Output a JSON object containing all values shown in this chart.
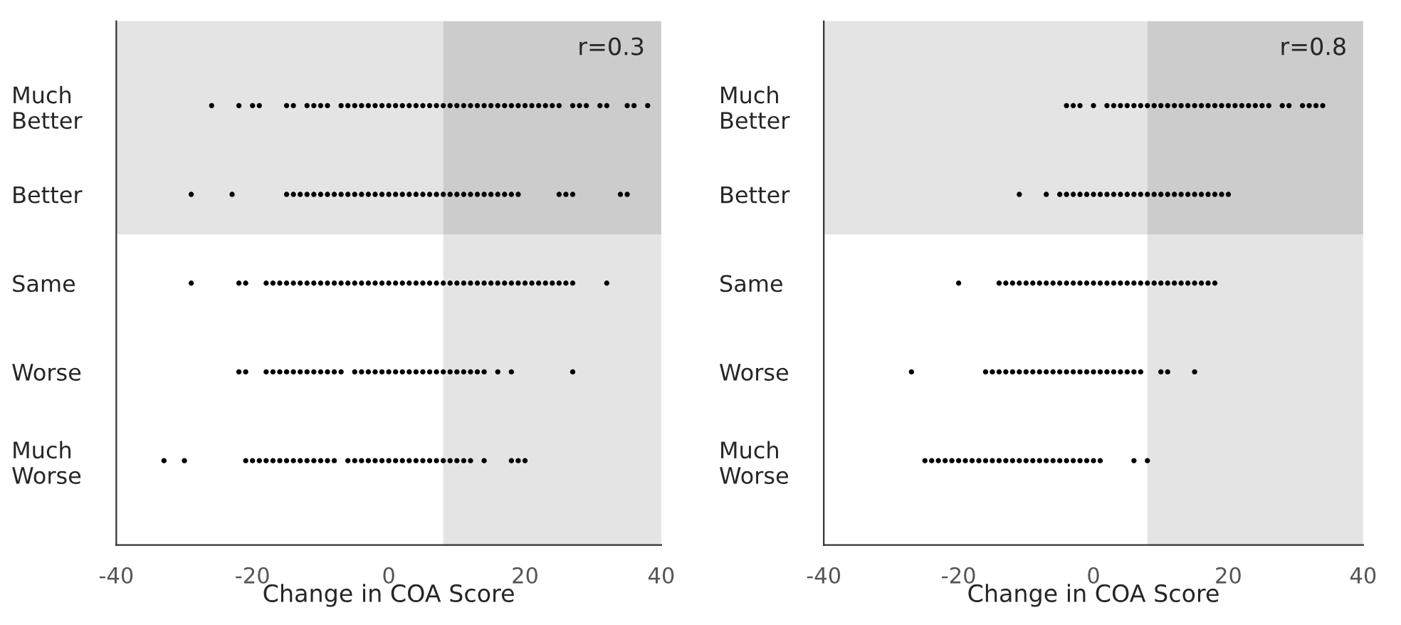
{
  "chart_data": [
    {
      "type": "scatter",
      "orientation": "horizontal",
      "xlabel": "Change in COA Score",
      "categories": [
        "Much\nBetter",
        "Better",
        "Same",
        "Worse",
        "Much\nWorse"
      ],
      "xlim": [
        -40,
        40
      ],
      "xticks": [
        -40,
        -20,
        0,
        20,
        40
      ],
      "grid": false,
      "marker": "circle",
      "annotations": [
        "r=0.3"
      ],
      "bands": [
        {
          "axis": "x",
          "from": 8,
          "to": 40,
          "color": "#e4e4e4"
        }
      ],
      "series": [
        {
          "color": "#000000",
          "values": [
            -26,
            -22,
            -20,
            -19,
            -15,
            -14,
            -12,
            -11,
            -10,
            -9,
            -7,
            -6,
            -5,
            -4,
            -3,
            -2,
            -1,
            0,
            1,
            2,
            3,
            4,
            5,
            6,
            7,
            8,
            9,
            10,
            11,
            12,
            13,
            14,
            15,
            16,
            17,
            18,
            19,
            20,
            21,
            22,
            23,
            24,
            25,
            27,
            28,
            29,
            31,
            32,
            35,
            36,
            38
          ],
          "x": [
            "Much\nBetter",
            "Much\nBetter",
            "Much\nBetter",
            "Much\nBetter",
            "Much\nBetter",
            "Much\nBetter",
            "Much\nBetter",
            "Much\nBetter",
            "Much\nBetter",
            "Much\nBetter",
            "Much\nBetter",
            "Much\nBetter",
            "Much\nBetter",
            "Much\nBetter",
            "Much\nBetter",
            "Much\nBetter",
            "Much\nBetter",
            "Much\nBetter",
            "Much\nBetter",
            "Much\nBetter",
            "Much\nBetter",
            "Much\nBetter",
            "Much\nBetter",
            "Much\nBetter",
            "Much\nBetter",
            "Much\nBetter",
            "Much\nBetter",
            "Much\nBetter",
            "Much\nBetter",
            "Much\nBetter",
            "Much\nBetter",
            "Much\nBetter",
            "Much\nBetter",
            "Much\nBetter",
            "Much\nBetter",
            "Much\nBetter",
            "Much\nBetter",
            "Much\nBetter",
            "Much\nBetter",
            "Much\nBetter",
            "Much\nBetter",
            "Much\nBetter",
            "Much\nBetter",
            "Much\nBetter",
            "Much\nBetter",
            "Much\nBetter",
            "Much\nBetter",
            "Much\nBetter",
            "Much\nBetter",
            "Much\nBetter",
            "Much\nBetter"
          ]
        },
        {
          "color": "#000000",
          "values": [
            -29,
            -23,
            -15,
            -14,
            -13,
            -12,
            -11,
            -10,
            -9,
            -8,
            -7,
            -6,
            -5,
            -4,
            -3,
            -2,
            -1,
            0,
            1,
            2,
            3,
            4,
            5,
            6,
            7,
            8,
            9,
            10,
            11,
            12,
            13,
            14,
            15,
            16,
            17,
            18,
            19,
            25,
            26,
            27,
            34,
            35
          ],
          "x": [
            "Better",
            "Better",
            "Better",
            "Better",
            "Better",
            "Better",
            "Better",
            "Better",
            "Better",
            "Better",
            "Better",
            "Better",
            "Better",
            "Better",
            "Better",
            "Better",
            "Better",
            "Better",
            "Better",
            "Better",
            "Better",
            "Better",
            "Better",
            "Better",
            "Better",
            "Better",
            "Better",
            "Better",
            "Better",
            "Better",
            "Better",
            "Better",
            "Better",
            "Better",
            "Better",
            "Better",
            "Better",
            "Better",
            "Better",
            "Better",
            "Better",
            "Better"
          ]
        },
        {
          "color": "#000000",
          "values": [
            -29,
            -22,
            -21,
            -18,
            -17,
            -16,
            -15,
            -14,
            -13,
            -12,
            -11,
            -10,
            -9,
            -8,
            -7,
            -6,
            -5,
            -4,
            -3,
            -2,
            -1,
            0,
            1,
            2,
            3,
            4,
            5,
            6,
            7,
            8,
            9,
            10,
            11,
            12,
            13,
            14,
            15,
            16,
            17,
            18,
            19,
            20,
            21,
            22,
            23,
            24,
            25,
            26,
            27,
            32
          ],
          "x": [
            "Same",
            "Same",
            "Same",
            "Same",
            "Same",
            "Same",
            "Same",
            "Same",
            "Same",
            "Same",
            "Same",
            "Same",
            "Same",
            "Same",
            "Same",
            "Same",
            "Same",
            "Same",
            "Same",
            "Same",
            "Same",
            "Same",
            "Same",
            "Same",
            "Same",
            "Same",
            "Same",
            "Same",
            "Same",
            "Same",
            "Same",
            "Same",
            "Same",
            "Same",
            "Same",
            "Same",
            "Same",
            "Same",
            "Same",
            "Same",
            "Same",
            "Same",
            "Same",
            "Same",
            "Same",
            "Same",
            "Same",
            "Same",
            "Same",
            "Same"
          ]
        },
        {
          "color": "#000000",
          "values": [
            -22,
            -21,
            -18,
            -17,
            -16,
            -15,
            -14,
            -13,
            -12,
            -11,
            -10,
            -9,
            -8,
            -7,
            -5,
            -4,
            -3,
            -2,
            -1,
            0,
            1,
            2,
            3,
            4,
            5,
            6,
            7,
            8,
            9,
            10,
            11,
            12,
            13,
            14,
            16,
            18,
            27
          ],
          "x": [
            "Worse",
            "Worse",
            "Worse",
            "Worse",
            "Worse",
            "Worse",
            "Worse",
            "Worse",
            "Worse",
            "Worse",
            "Worse",
            "Worse",
            "Worse",
            "Worse",
            "Worse",
            "Worse",
            "Worse",
            "Worse",
            "Worse",
            "Worse",
            "Worse",
            "Worse",
            "Worse",
            "Worse",
            "Worse",
            "Worse",
            "Worse",
            "Worse",
            "Worse",
            "Worse",
            "Worse",
            "Worse",
            "Worse",
            "Worse",
            "Worse",
            "Worse",
            "Worse"
          ]
        },
        {
          "color": "#000000",
          "values": [
            -33,
            -30,
            -21,
            -20,
            -19,
            -18,
            -17,
            -16,
            -15,
            -14,
            -13,
            -12,
            -11,
            -10,
            -9,
            -8,
            -6,
            -5,
            -4,
            -3,
            -2,
            -1,
            0,
            1,
            2,
            3,
            4,
            5,
            6,
            7,
            8,
            9,
            10,
            11,
            12,
            14,
            18,
            19,
            20
          ],
          "x": [
            "Much\nWorse",
            "Much\nWorse",
            "Much\nWorse",
            "Much\nWorse",
            "Much\nWorse",
            "Much\nWorse",
            "Much\nWorse",
            "Much\nWorse",
            "Much\nWorse",
            "Much\nWorse",
            "Much\nWorse",
            "Much\nWorse",
            "Much\nWorse",
            "Much\nWorse",
            "Much\nWorse",
            "Much\nWorse",
            "Much\nWorse",
            "Much\nWorse",
            "Much\nWorse",
            "Much\nWorse",
            "Much\nWorse",
            "Much\nWorse",
            "Much\nWorse",
            "Much\nWorse",
            "Much\nWorse",
            "Much\nWorse",
            "Much\nWorse",
            "Much\nWorse",
            "Much\nWorse",
            "Much\nWorse",
            "Much\nWorse",
            "Much\nWorse",
            "Much\nWorse",
            "Much\nWorse",
            "Much\nWorse",
            "Much\nWorse",
            "Much\nWorse",
            "Much\nWorse",
            "Much\nWorse"
          ]
        }
      ]
    },
    {
      "type": "scatter",
      "orientation": "horizontal",
      "xlabel": "Change in COA Score",
      "categories": [
        "Much\nBetter",
        "Better",
        "Same",
        "Worse",
        "Much\nWorse"
      ],
      "xlim": [
        -40,
        40
      ],
      "xticks": [
        -40,
        -20,
        0,
        20,
        40
      ],
      "grid": false,
      "marker": "circle",
      "annotations": [
        "r=0.8"
      ],
      "bands": [
        {
          "axis": "x",
          "from": 8,
          "to": 40,
          "color": "#e4e4e4"
        }
      ],
      "series": [
        {
          "color": "#000000",
          "values": [
            -4,
            -3,
            -2,
            0,
            2,
            3,
            4,
            5,
            6,
            7,
            8,
            9,
            10,
            11,
            12,
            13,
            14,
            15,
            16,
            17,
            18,
            19,
            20,
            21,
            22,
            23,
            24,
            25,
            26,
            28,
            29,
            31,
            32,
            33,
            34
          ],
          "x": [
            "Much\nBetter",
            "Much\nBetter",
            "Much\nBetter",
            "Much\nBetter",
            "Much\nBetter",
            "Much\nBetter",
            "Much\nBetter",
            "Much\nBetter",
            "Much\nBetter",
            "Much\nBetter",
            "Much\nBetter",
            "Much\nBetter",
            "Much\nBetter",
            "Much\nBetter",
            "Much\nBetter",
            "Much\nBetter",
            "Much\nBetter",
            "Much\nBetter",
            "Much\nBetter",
            "Much\nBetter",
            "Much\nBetter",
            "Much\nBetter",
            "Much\nBetter",
            "Much\nBetter",
            "Much\nBetter",
            "Much\nBetter",
            "Much\nBetter",
            "Much\nBetter",
            "Much\nBetter",
            "Much\nBetter",
            "Much\nBetter",
            "Much\nBetter",
            "Much\nBetter",
            "Much\nBetter",
            "Much\nBetter"
          ]
        },
        {
          "color": "#000000",
          "values": [
            -11,
            -7,
            -5,
            -4,
            -3,
            -2,
            -1,
            0,
            1,
            2,
            3,
            4,
            5,
            6,
            7,
            8,
            9,
            10,
            11,
            12,
            13,
            14,
            15,
            16,
            17,
            18,
            19,
            20
          ],
          "x": [
            "Better",
            "Better",
            "Better",
            "Better",
            "Better",
            "Better",
            "Better",
            "Better",
            "Better",
            "Better",
            "Better",
            "Better",
            "Better",
            "Better",
            "Better",
            "Better",
            "Better",
            "Better",
            "Better",
            "Better",
            "Better",
            "Better",
            "Better",
            "Better",
            "Better",
            "Better",
            "Better",
            "Better"
          ]
        },
        {
          "color": "#000000",
          "values": [
            -20,
            -14,
            -13,
            -12,
            -11,
            -10,
            -9,
            -8,
            -7,
            -6,
            -5,
            -4,
            -3,
            -2,
            -1,
            0,
            1,
            2,
            3,
            4,
            5,
            6,
            7,
            8,
            9,
            10,
            11,
            12,
            13,
            14,
            15,
            16,
            17,
            18
          ],
          "x": [
            "Same",
            "Same",
            "Same",
            "Same",
            "Same",
            "Same",
            "Same",
            "Same",
            "Same",
            "Same",
            "Same",
            "Same",
            "Same",
            "Same",
            "Same",
            "Same",
            "Same",
            "Same",
            "Same",
            "Same",
            "Same",
            "Same",
            "Same",
            "Same",
            "Same",
            "Same",
            "Same",
            "Same",
            "Same",
            "Same",
            "Same",
            "Same",
            "Same",
            "Same"
          ]
        },
        {
          "color": "#000000",
          "values": [
            -27,
            -16,
            -15,
            -14,
            -13,
            -12,
            -11,
            -10,
            -9,
            -8,
            -7,
            -6,
            -5,
            -4,
            -3,
            -2,
            -1,
            0,
            1,
            2,
            3,
            4,
            5,
            6,
            7,
            10,
            11,
            15
          ],
          "x": [
            "Worse",
            "Worse",
            "Worse",
            "Worse",
            "Worse",
            "Worse",
            "Worse",
            "Worse",
            "Worse",
            "Worse",
            "Worse",
            "Worse",
            "Worse",
            "Worse",
            "Worse",
            "Worse",
            "Worse",
            "Worse",
            "Worse",
            "Worse",
            "Worse",
            "Worse",
            "Worse",
            "Worse",
            "Worse",
            "Worse",
            "Worse",
            "Worse"
          ]
        },
        {
          "color": "#000000",
          "values": [
            -25,
            -24,
            -23,
            -22,
            -21,
            -20,
            -19,
            -18,
            -17,
            -16,
            -15,
            -14,
            -13,
            -12,
            -11,
            -10,
            -9,
            -8,
            -7,
            -6,
            -5,
            -4,
            -3,
            -2,
            -1,
            0,
            1,
            6,
            8
          ],
          "x": [
            "Much\nWorse",
            "Much\nWorse",
            "Much\nWorse",
            "Much\nWorse",
            "Much\nWorse",
            "Much\nWorse",
            "Much\nWorse",
            "Much\nWorse",
            "Much\nWorse",
            "Much\nWorse",
            "Much\nWorse",
            "Much\nWorse",
            "Much\nWorse",
            "Much\nWorse",
            "Much\nWorse",
            "Much\nWorse",
            "Much\nWorse",
            "Much\nWorse",
            "Much\nWorse",
            "Much\nWorse",
            "Much\nWorse",
            "Much\nWorse",
            "Much\nWorse",
            "Much\nWorse",
            "Much\nWorse",
            "Much\nWorse",
            "Much\nWorse",
            "Much\nWorse",
            "Much\nWorse"
          ]
        }
      ]
    }
  ]
}
